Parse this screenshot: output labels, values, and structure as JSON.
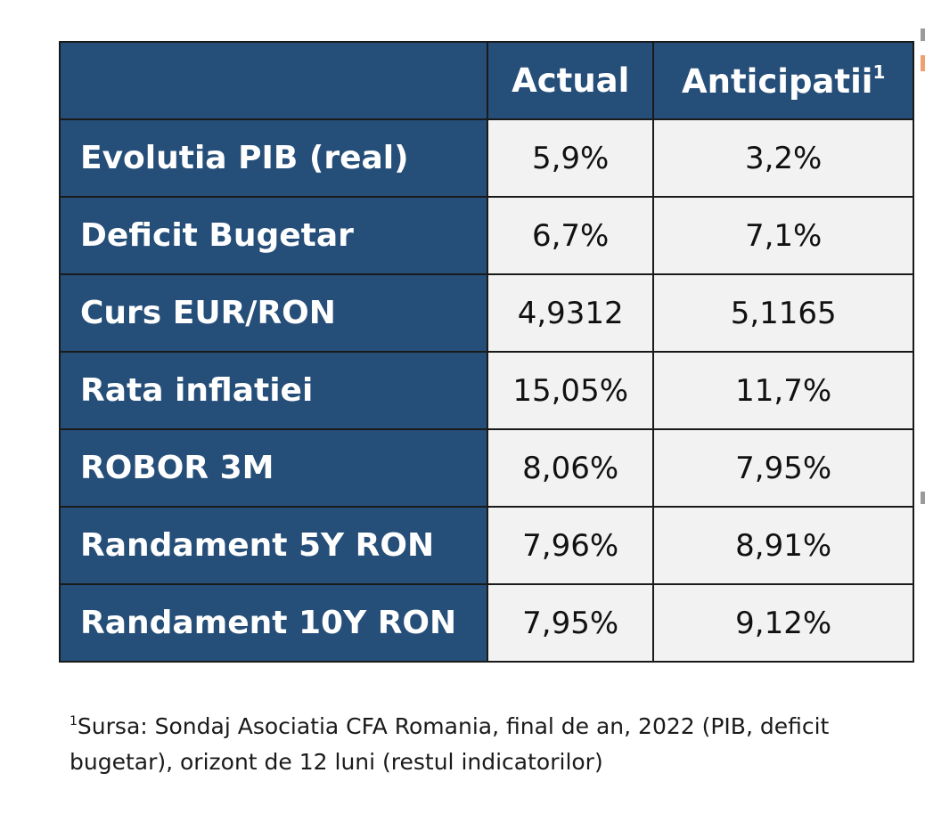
{
  "table": {
    "header": {
      "empty": "",
      "actual": "Actual",
      "anticipatii": "Anticipatii",
      "anticipatii_sup": "1"
    },
    "rows": [
      {
        "label": "Evolutia PIB (real)",
        "actual": "5,9%",
        "anticipatii": "3,2%"
      },
      {
        "label": "Deficit Bugetar",
        "actual": "6,7%",
        "anticipatii": "7,1%"
      },
      {
        "label": "Curs EUR/RON",
        "actual": "4,9312",
        "anticipatii": "5,1165"
      },
      {
        "label": "Rata inflatiei",
        "actual": "15,05%",
        "anticipatii": "11,7%"
      },
      {
        "label": "ROBOR 3M",
        "actual": "8,06%",
        "anticipatii": "7,95%"
      },
      {
        "label": "Randament 5Y RON",
        "actual": "7,96%",
        "anticipatii": "8,91%"
      },
      {
        "label": "Randament 10Y RON",
        "actual": "7,95%",
        "anticipatii": "9,12%"
      }
    ]
  },
  "footnote": {
    "sup": "1",
    "text": "Sursa: Sondaj Asociatia CFA Romania, final de an, 2022 (PIB, deficit bugetar), orizont de 12 luni (restul indicatorilor)"
  },
  "colors": {
    "header_bg": "#254e78",
    "cell_bg": "#f2f2f2",
    "border": "#1a1a1a"
  }
}
